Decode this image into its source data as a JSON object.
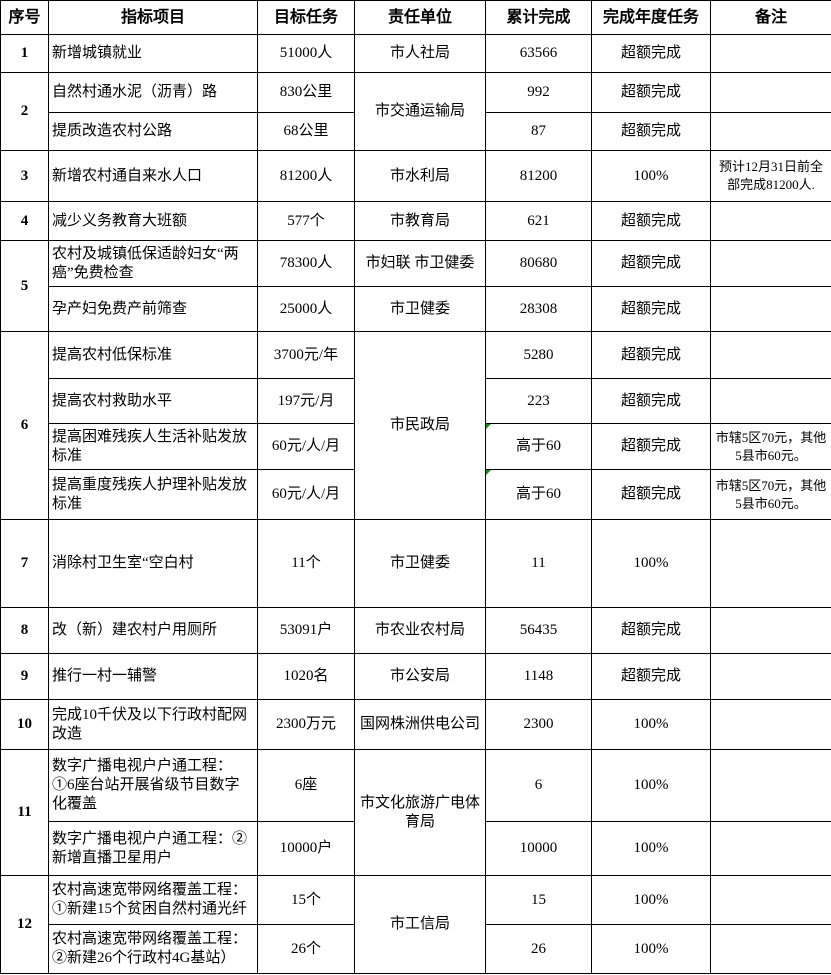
{
  "headers": [
    "序号",
    "指标项目",
    "目标任务",
    "责任单位",
    "累计完成",
    "完成年度任务",
    "备注"
  ],
  "groups": [
    {
      "no": "1",
      "unit": "市人社局",
      "items": [
        {
          "item": "新增城镇就业",
          "target": "51000人",
          "done": "63566",
          "status": "超额完成",
          "note": ""
        }
      ]
    },
    {
      "no": "2",
      "unit": "市交通运输局",
      "items": [
        {
          "item": "自然村通水泥（沥青）路",
          "target": "830公里",
          "done": "992",
          "status": "超额完成",
          "note": ""
        },
        {
          "item": "提质改造农村公路",
          "target": "68公里",
          "done": "87",
          "status": "超额完成",
          "note": ""
        }
      ]
    },
    {
      "no": "3",
      "unit": "市水利局",
      "items": [
        {
          "item": "新增农村通自来水人口",
          "target": "81200人",
          "done": "81200",
          "status": "100%",
          "note": "预计12月31日前全部完成81200人."
        }
      ]
    },
    {
      "no": "4",
      "unit": "市教育局",
      "items": [
        {
          "item": "减少义务教育大班额",
          "target": "577个",
          "done": "621",
          "status": "超额完成",
          "note": ""
        }
      ]
    },
    {
      "no": "5",
      "unit": null,
      "items": [
        {
          "item": "农村及城镇低保适龄妇女“两癌”免费检查",
          "target": "78300人",
          "unit": "市妇联  市卫健委",
          "done": "80680",
          "status": "超额完成",
          "note": ""
        },
        {
          "item": "孕产妇免费产前筛查",
          "target": "25000人",
          "unit": "市卫健委",
          "done": "28308",
          "status": "超额完成",
          "note": ""
        }
      ]
    },
    {
      "no": "6",
      "unit": "市民政局",
      "items": [
        {
          "item": "提高农村低保标准",
          "target": "3700元/年",
          "done": "5280",
          "status": "超额完成",
          "note": ""
        },
        {
          "item": "提高农村救助水平",
          "target": "197元/月",
          "done": "223",
          "status": "超额完成",
          "note": ""
        },
        {
          "item": "提高困难残疾人生活补贴发放标准",
          "target": "60元/人/月",
          "done": "高于60",
          "status": "超额完成",
          "note": "市辖5区70元，其他5县市60元。"
        },
        {
          "item": "提高重度残疾人护理补贴发放标准",
          "target": "60元/人/月",
          "done": "高于60",
          "status": "超额完成",
          "note": "市辖5区70元，其他5县市60元。"
        }
      ]
    },
    {
      "no": "7",
      "unit": "市卫健委",
      "items": [
        {
          "item": "消除村卫生室“空白村",
          "target": "11个",
          "done": "11",
          "status": "100%",
          "note": ""
        }
      ]
    },
    {
      "no": "8",
      "unit": "市农业农村局",
      "items": [
        {
          "item": "改（新）建农村户用厕所",
          "target": "53091户",
          "done": "56435",
          "status": "超额完成",
          "note": ""
        }
      ]
    },
    {
      "no": "9",
      "unit": "市公安局",
      "items": [
        {
          "item": "推行一村一辅警",
          "target": "1020名",
          "done": "1148",
          "status": "超额完成",
          "note": ""
        }
      ]
    },
    {
      "no": "10",
      "unit": "国网株洲供电公司",
      "items": [
        {
          "item": "完成10千伏及以下行政村配网改造",
          "target": "2300万元",
          "done": "2300",
          "status": "100%",
          "note": ""
        }
      ]
    },
    {
      "no": "11",
      "unit": "市文化旅游广电体育局",
      "items": [
        {
          "item": "数字广播电视户户通工程：①6座台站开展省级节目数字化覆盖",
          "target": "6座",
          "done": "6",
          "status": "100%",
          "note": ""
        },
        {
          "item": "数字广播电视户户通工程：②新增直播卫星用户",
          "target": "10000户",
          "done": "10000",
          "status": "100%",
          "note": ""
        }
      ]
    },
    {
      "no": "12",
      "unit": "市工信局",
      "items": [
        {
          "item": "农村高速宽带网络覆盖工程：①新建15个贫困自然村通光纤",
          "target": "15个",
          "done": "15",
          "status": "100%",
          "note": ""
        },
        {
          "item": "农村高速宽带网络覆盖工程：②新建26个行政村4G基站）",
          "target": "26个",
          "done": "26",
          "status": "100%",
          "note": ""
        }
      ]
    }
  ]
}
